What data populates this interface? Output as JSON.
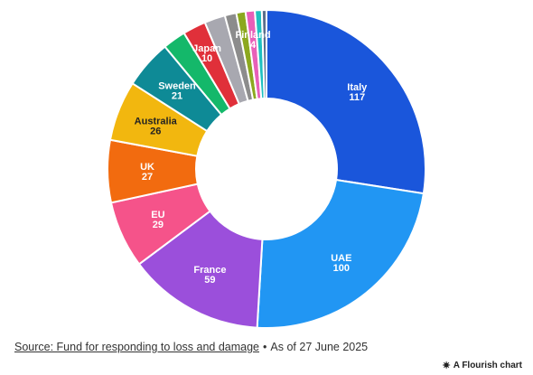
{
  "chart_data": {
    "type": "donut",
    "title": "",
    "slices": [
      {
        "label": "Italy",
        "value": 117,
        "color": "#1a56db",
        "text_color": "#ffffff",
        "show_label": true
      },
      {
        "label": "UAE",
        "value": 100,
        "color": "#2196f3",
        "text_color": "#ffffff",
        "show_label": true
      },
      {
        "label": "France",
        "value": 59,
        "color": "#9b4fdb",
        "text_color": "#ffffff",
        "show_label": true
      },
      {
        "label": "EU",
        "value": 29,
        "color": "#f5538a",
        "text_color": "#ffffff",
        "show_label": true
      },
      {
        "label": "UK",
        "value": 27,
        "color": "#f26b0f",
        "text_color": "#ffffff",
        "show_label": true
      },
      {
        "label": "Australia",
        "value": 26,
        "color": "#f2b70f",
        "text_color": "#222222",
        "show_label": true
      },
      {
        "label": "Sweden",
        "value": 21,
        "color": "#0e8a96",
        "text_color": "#ffffff",
        "show_label": true
      },
      {
        "label": "",
        "value": 10,
        "color": "#14b86a",
        "text_color": "#ffffff",
        "show_label": false
      },
      {
        "label": "Japan",
        "value": 10,
        "color": "#e0303a",
        "text_color": "#ffffff",
        "show_label": true
      },
      {
        "label": "",
        "value": 9,
        "color": "#a8a8b0",
        "text_color": "#ffffff",
        "show_label": false
      },
      {
        "label": "",
        "value": 5,
        "color": "#8c8c8c",
        "text_color": "#ffffff",
        "show_label": false
      },
      {
        "label": "",
        "value": 4,
        "color": "#8ca81f",
        "text_color": "#ffffff",
        "show_label": false
      },
      {
        "label": "Finland",
        "value": 4,
        "color": "#e85fb8",
        "text_color": "#ffffff",
        "show_label": true
      },
      {
        "label": "",
        "value": 3,
        "color": "#1fc0c0",
        "text_color": "#ffffff",
        "show_label": false
      },
      {
        "label": "",
        "value": 2,
        "color": "#5a6e8c",
        "text_color": "#ffffff",
        "show_label": false
      }
    ]
  },
  "footer": {
    "source_link": "Source: Fund for responding to loss and damage",
    "separator": "•",
    "date_note": "As of 27 June 2025",
    "flourish_icon": "asterisk-icon",
    "flourish_label": "A Flourish chart"
  }
}
